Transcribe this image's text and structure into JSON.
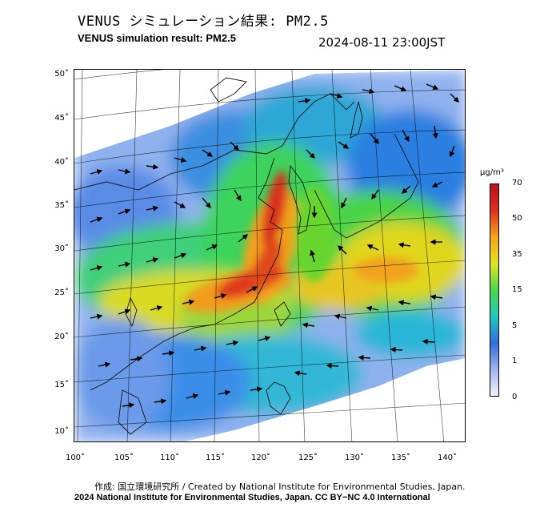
{
  "header": {
    "title_jp": "VENUS シミュレーション結果: PM2.5",
    "title_en": "VENUS simulation result: PM2.5",
    "timestamp": "2024-08-11 23:00JST"
  },
  "map": {
    "lat_labels": [
      "50˚",
      "45˚",
      "40˚",
      "35˚",
      "30˚",
      "25˚",
      "20˚",
      "15˚",
      "10˚"
    ],
    "lon_labels": [
      "100˚",
      "105˚",
      "110˚",
      "115˚",
      "120˚",
      "125˚",
      "130˚",
      "135˚",
      "140˚"
    ],
    "variable": "PM2.5",
    "wind_vectors_shown": true
  },
  "colorbar": {
    "unit": "μg/m³",
    "ticks": [
      "70",
      "50",
      "35",
      "15",
      "5",
      "1",
      "0"
    ],
    "colors": [
      "#f4f4fb",
      "#9fb4ec",
      "#2e6fdd",
      "#21c7c0",
      "#49d84a",
      "#e4e31f",
      "#f6a41a",
      "#e0301e",
      "#b9101e"
    ]
  },
  "footer": {
    "credit_jp": "作成: 国立環境研究所 / Created by National Institute for Environmental Studies, Japan.",
    "credit_en": "2024 National Institute for Environmental Studies, Japan. CC BY−NC 4.0 International"
  }
}
